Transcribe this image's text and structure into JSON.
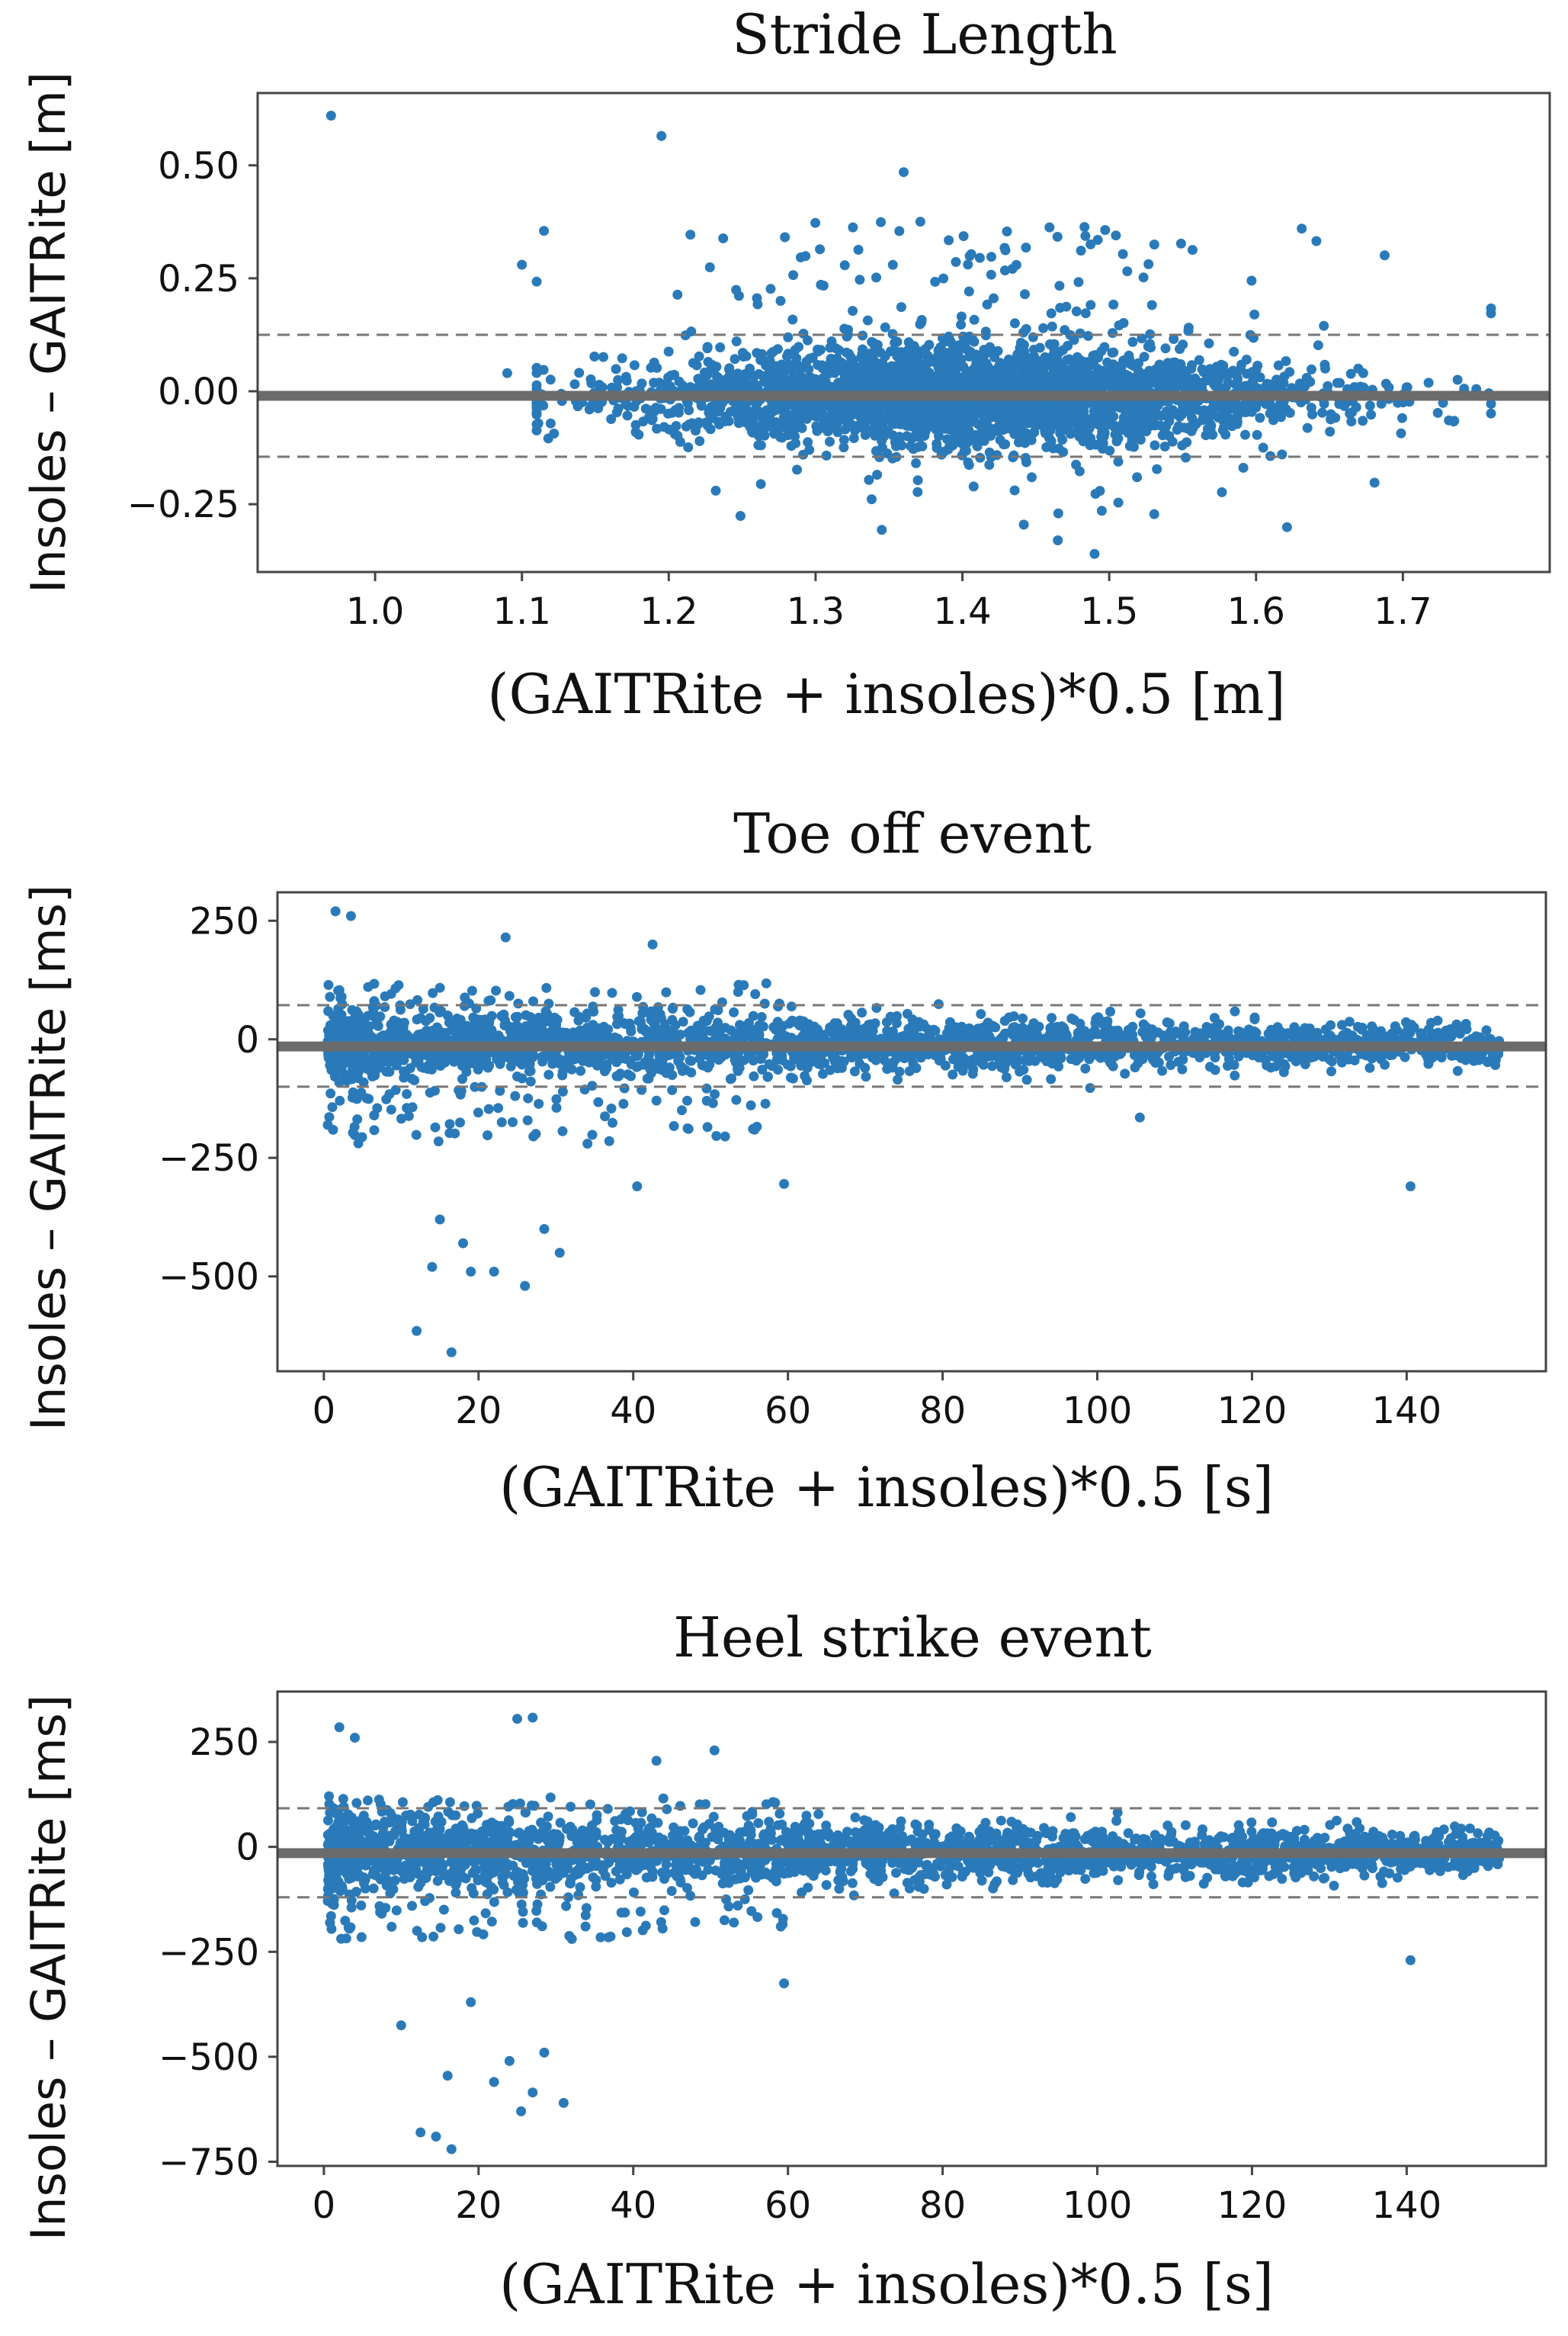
{
  "chart_data": [
    {
      "type": "scatter",
      "title": "Stride Length",
      "xlabel": "(GAITRite + insoles)*0.5 [m]",
      "ylabel": "Insoles – GAITRite [m]",
      "xlim": [
        0.92,
        1.8
      ],
      "ylim": [
        -0.4,
        0.66
      ],
      "xticks": [
        1.0,
        1.1,
        1.2,
        1.3,
        1.4,
        1.5,
        1.6,
        1.7
      ],
      "xtick_labels": [
        "1.0",
        "1.1",
        "1.2",
        "1.3",
        "1.4",
        "1.5",
        "1.6",
        "1.7"
      ],
      "yticks": [
        0.5,
        0.25,
        0.0,
        -0.25
      ],
      "ytick_labels": [
        "0.50",
        "0.25",
        "0.00",
        "−0.25"
      ],
      "mean_bias": -0.01,
      "upper_loa": 0.125,
      "lower_loa": -0.145,
      "color": "#2a7ab9",
      "notable_points": [
        [
          0.97,
          0.61
        ],
        [
          1.195,
          0.565
        ],
        [
          1.36,
          0.485
        ],
        [
          1.49,
          -0.36
        ],
        [
          1.465,
          -0.33
        ],
        [
          1.09,
          0.04
        ],
        [
          1.1,
          0.28
        ],
        [
          1.115,
          0.355
        ],
        [
          1.232,
          -0.22
        ],
        [
          1.75,
          0.005
        ]
      ],
      "cloud": {
        "n": 2800,
        "x_mean": 1.41,
        "x_sd": 0.12,
        "x_range": [
          1.11,
          1.76
        ],
        "y_mean": -0.01,
        "y_sd": 0.06
      }
    },
    {
      "type": "scatter",
      "title": "Toe off event",
      "xlabel": "(GAITRite + insoles)*0.5 [s]",
      "ylabel": "Insoles – GAITRite [ms]",
      "xlim": [
        -6,
        158
      ],
      "ylim": [
        -700,
        310
      ],
      "xticks": [
        0,
        20,
        40,
        60,
        80,
        100,
        120,
        140
      ],
      "xtick_labels": [
        "0",
        "20",
        "40",
        "60",
        "80",
        "100",
        "120",
        "140"
      ],
      "yticks": [
        250,
        0,
        -250,
        -500
      ],
      "ytick_labels": [
        "250",
        "0",
        "−250",
        "−500"
      ],
      "mean_bias": -15,
      "upper_loa": 72,
      "lower_loa": -100,
      "color": "#2a7ab9",
      "notable_points": [
        [
          1.5,
          270
        ],
        [
          3.5,
          260
        ],
        [
          23.5,
          215
        ],
        [
          42.5,
          200
        ],
        [
          16.5,
          -660
        ],
        [
          12,
          -615
        ],
        [
          14,
          -480
        ],
        [
          26,
          -520
        ],
        [
          30.5,
          -450
        ],
        [
          40.5,
          -310
        ],
        [
          59.5,
          -305
        ],
        [
          140.5,
          -310
        ],
        [
          105.5,
          -165
        ],
        [
          15,
          -380
        ],
        [
          19,
          -490
        ],
        [
          22,
          -490
        ],
        [
          28.5,
          -400
        ],
        [
          18,
          -430
        ]
      ],
      "cloud": {
        "n": 2600,
        "x_range": [
          0.5,
          152
        ],
        "y_mean": -12,
        "y_sd_early": 38,
        "y_sd_late": 18
      }
    },
    {
      "type": "scatter",
      "title": "Heel strike event",
      "xlabel": "(GAITRite + insoles)*0.5 [s]",
      "ylabel": "Insoles – GAITRite [ms]",
      "xlim": [
        -6,
        158
      ],
      "ylim": [
        -760,
        370
      ],
      "xticks": [
        0,
        20,
        40,
        60,
        80,
        100,
        120,
        140
      ],
      "xtick_labels": [
        "0",
        "20",
        "40",
        "60",
        "80",
        "100",
        "120",
        "140"
      ],
      "yticks": [
        250,
        0,
        -250,
        -500,
        -750
      ],
      "ytick_labels": [
        "250",
        "0",
        "−250",
        "−500",
        "−750"
      ],
      "mean_bias": -15,
      "upper_loa": 92,
      "lower_loa": -120,
      "color": "#2a7ab9",
      "notable_points": [
        [
          25,
          305
        ],
        [
          27,
          308
        ],
        [
          2,
          285
        ],
        [
          4,
          260
        ],
        [
          43,
          205
        ],
        [
          50.5,
          230
        ],
        [
          16.5,
          -720
        ],
        [
          12.5,
          -680
        ],
        [
          14.5,
          -690
        ],
        [
          25.5,
          -630
        ],
        [
          31,
          -610
        ],
        [
          27,
          -585
        ],
        [
          22,
          -560
        ],
        [
          16,
          -545
        ],
        [
          140.5,
          -270
        ],
        [
          59.5,
          -325
        ],
        [
          10,
          -425
        ],
        [
          19,
          -370
        ],
        [
          28.5,
          -490
        ],
        [
          24,
          -510
        ]
      ],
      "cloud": {
        "n": 2600,
        "x_range": [
          0.5,
          152
        ],
        "y_mean": -14,
        "y_sd_early": 45,
        "y_sd_late": 25
      }
    }
  ]
}
